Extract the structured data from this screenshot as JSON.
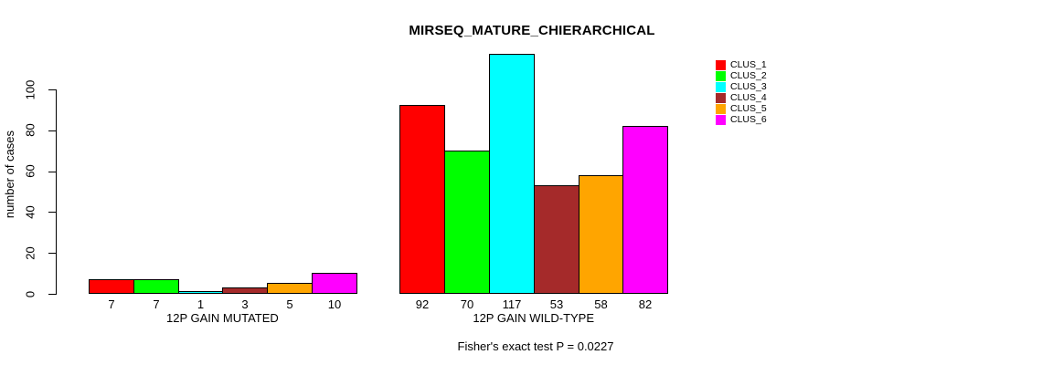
{
  "chart_data": {
    "type": "bar",
    "title": "MIRSEQ_MATURE_CHIERARCHICAL",
    "ylabel": "number of cases",
    "xlabel": "",
    "ylim": [
      0,
      117
    ],
    "y_ticks": [
      0,
      20,
      40,
      60,
      80,
      100
    ],
    "grid": false,
    "legend_position": "right",
    "categories": [
      "12P GAIN MUTATED",
      "12P GAIN WILD-TYPE"
    ],
    "series": [
      {
        "name": "CLUS_1",
        "color": "#ff0000",
        "values": [
          7,
          92
        ]
      },
      {
        "name": "CLUS_2",
        "color": "#00ff00",
        "values": [
          7,
          70
        ]
      },
      {
        "name": "CLUS_3",
        "color": "#00ffff",
        "values": [
          1,
          117
        ]
      },
      {
        "name": "CLUS_4",
        "color": "#a52a2a",
        "values": [
          3,
          53
        ]
      },
      {
        "name": "CLUS_5",
        "color": "#ffa500",
        "values": [
          5,
          58
        ]
      },
      {
        "name": "CLUS_6",
        "color": "#ff00ff",
        "values": [
          10,
          82
        ]
      }
    ],
    "bar_value_labels": true,
    "annotation": "Fisher's exact test P = 0.0227"
  }
}
